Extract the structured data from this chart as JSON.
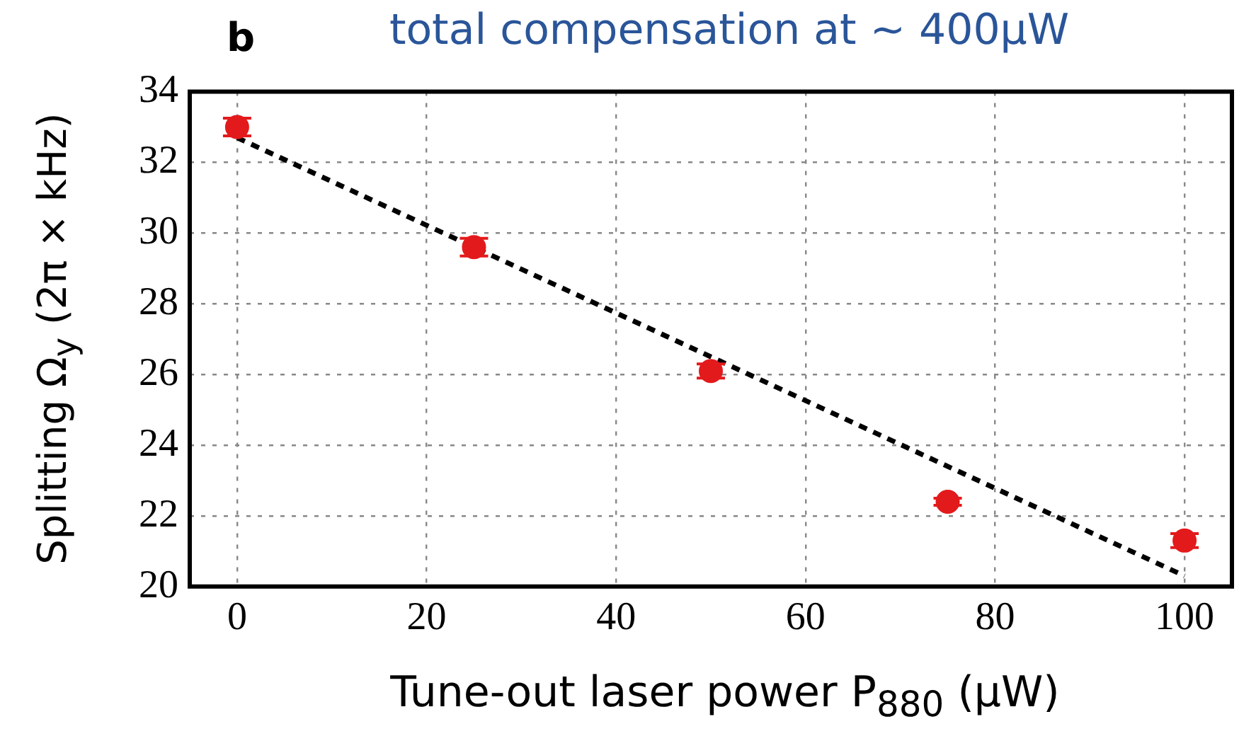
{
  "chart_data": {
    "type": "scatter",
    "title": "total compensation at ~ 400μW",
    "xlabel": "Tune-out laser power P$_{880}$ (μW)",
    "ylabel": "Splitting Ω$_{y}$ (2π × kHz)",
    "annotations": [
      "b"
    ],
    "x": [
      0,
      25,
      50,
      75,
      100
    ],
    "series": [
      {
        "type": "scatter",
        "color": "#e31a1c",
        "values": [
          33.0,
          29.6,
          26.1,
          22.4,
          21.3
        ],
        "errors": [
          0.25,
          0.25,
          0.2,
          0.1,
          0.2
        ],
        "marker": "circle"
      },
      {
        "type": "line",
        "color": "#000000",
        "x": [
          0,
          100
        ],
        "values": [
          32.7,
          20.3
        ],
        "line_style": "dashed",
        "marker": "none"
      }
    ],
    "xlim": [
      -5,
      105
    ],
    "xticks": [
      0,
      20,
      40,
      60,
      80,
      100
    ],
    "ylim": [
      20,
      34
    ],
    "yticks": [
      20,
      22,
      24,
      26,
      28,
      30,
      32,
      34
    ],
    "grid": true,
    "legend": false
  }
}
